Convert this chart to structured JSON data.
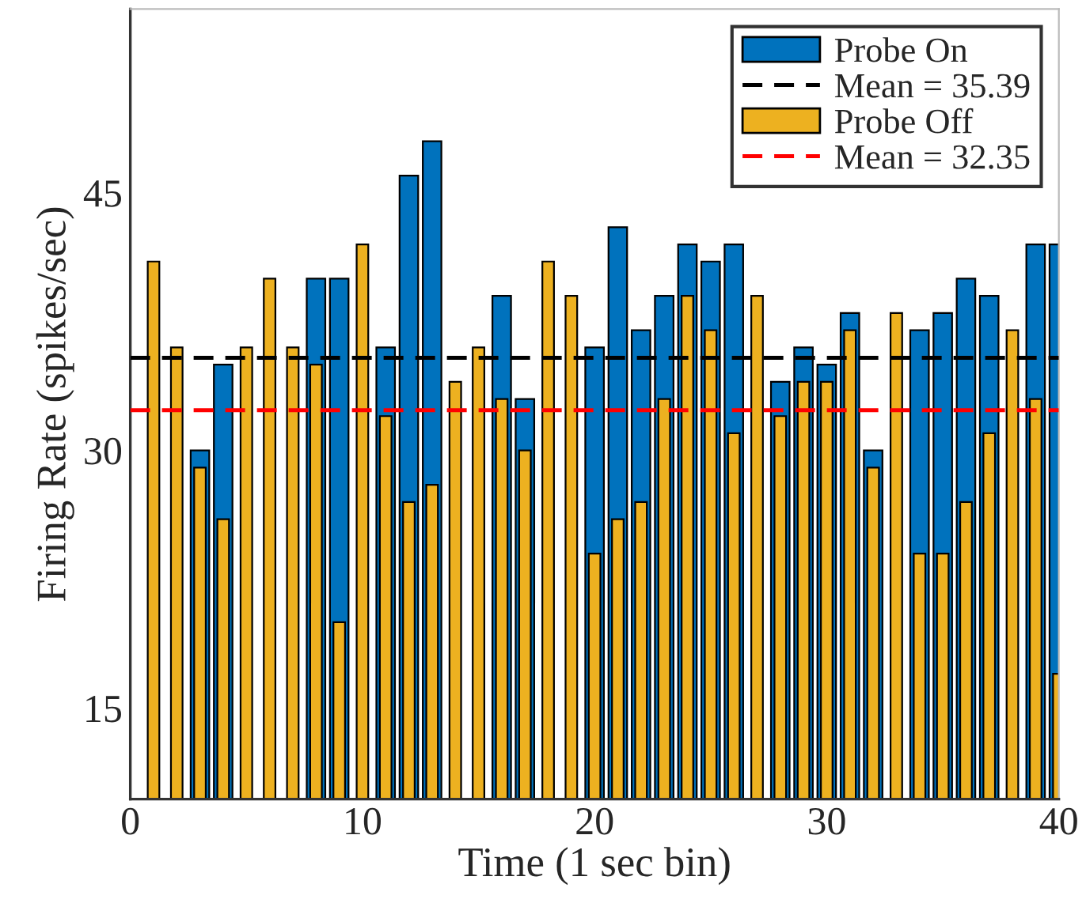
{
  "chart_data": {
    "type": "bar",
    "xlabel": "Time (1 sec bin)",
    "ylabel": "Firing Rate (spikes/sec)",
    "x": [
      1,
      2,
      3,
      4,
      5,
      6,
      7,
      8,
      9,
      10,
      11,
      12,
      13,
      14,
      15,
      16,
      17,
      18,
      19,
      20,
      21,
      22,
      23,
      24,
      25,
      26,
      27,
      28,
      29,
      30,
      31,
      32,
      33,
      34,
      35,
      36,
      37,
      38,
      39,
      40
    ],
    "series": [
      {
        "name": "Probe On",
        "color": "#0072bd",
        "values": [
          null,
          null,
          30,
          35,
          null,
          null,
          null,
          40,
          40,
          null,
          36,
          46,
          48,
          null,
          null,
          39,
          33,
          null,
          null,
          36,
          43,
          37,
          39,
          42,
          41,
          42,
          null,
          34,
          36,
          35,
          38,
          30,
          null,
          37,
          38,
          40,
          39,
          null,
          42,
          42
        ]
      },
      {
        "name": "Probe Off",
        "color": "#edb120",
        "values": [
          41,
          36,
          29,
          26,
          36,
          40,
          36,
          35,
          20,
          42,
          32,
          27,
          28,
          34,
          36,
          33,
          30,
          41,
          39,
          24,
          26,
          27,
          33,
          39,
          37,
          31,
          39,
          32,
          34,
          34,
          37,
          29,
          38,
          24,
          24,
          27,
          31,
          37,
          33,
          17
        ]
      }
    ],
    "ref_lines": [
      {
        "axis": "y",
        "value": 35.39,
        "label": "Mean = 35.39",
        "color": "#000000",
        "line_style": "dashed"
      },
      {
        "axis": "y",
        "value": 32.35,
        "label": "Mean = 32.35",
        "color": "#ff0000",
        "line_style": "dashed"
      }
    ],
    "xlim": [
      0,
      40
    ],
    "ylim": [
      9.7,
      55.7
    ],
    "xticks": [
      0,
      10,
      20,
      30,
      40
    ],
    "yticks": [
      15,
      30,
      45
    ],
    "grid": false,
    "legend": "top right"
  }
}
